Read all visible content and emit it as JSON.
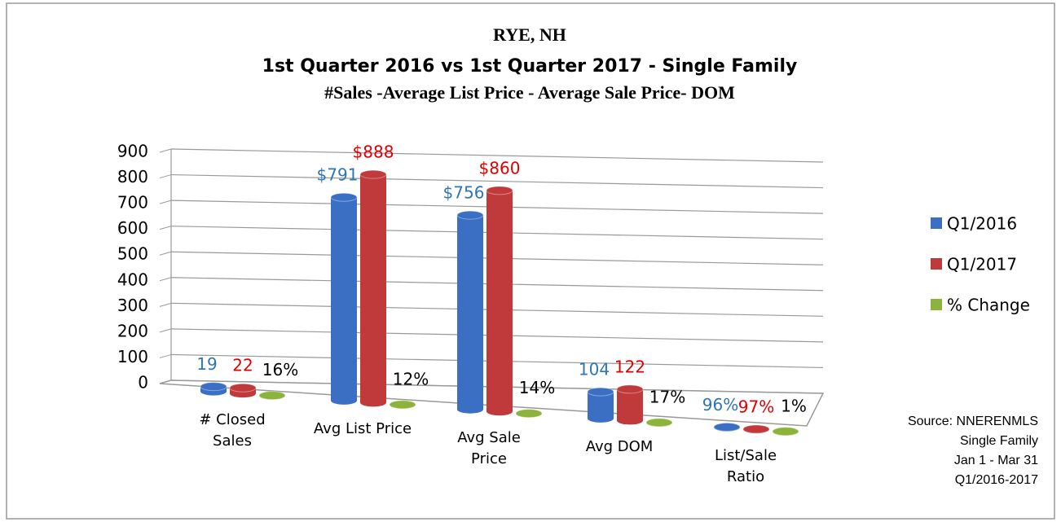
{
  "chart_data": {
    "type": "bar",
    "title": "RYE, NH",
    "subtitle": "1st Quarter 2016 vs 1st Quarter 2017 - Single Family",
    "subtitle2": "#Sales -Average List Price - Average Sale Price- DOM",
    "categories": [
      "# Closed Sales",
      "Avg List Price",
      "Avg Sale Price",
      "Avg DOM",
      "List/Sale Ratio"
    ],
    "series": [
      {
        "name": "Q1/2016",
        "color": "#3a6fc4",
        "label_color": "#2e75b6",
        "values": [
          19,
          791,
          756,
          104,
          0.96
        ],
        "value_labels": [
          "19",
          "$791",
          "$756",
          "104",
          "96%"
        ]
      },
      {
        "name": "Q1/2017",
        "color": "#c0393b",
        "label_color": "#e00000",
        "values": [
          22,
          888,
          860,
          122,
          0.97
        ],
        "value_labels": [
          "22",
          "$888",
          "$860",
          "122",
          "97%"
        ]
      },
      {
        "name": "% Change",
        "color": "#8cb43a",
        "label_color": "#000000",
        "values": [
          0.16,
          0.12,
          0.14,
          0.17,
          0.01
        ],
        "value_labels": [
          "16%",
          "12%",
          "14%",
          "17%",
          "1%"
        ]
      }
    ],
    "ylim": [
      0,
      900
    ],
    "yticks": [
      0,
      100,
      200,
      300,
      400,
      500,
      600,
      700,
      800,
      900
    ],
    "grid": true,
    "legend": "right",
    "annotation": [
      "Source: NNERENMLS",
      "Single Family",
      "Jan 1 - Mar 31",
      "Q1/2016-2017"
    ]
  }
}
